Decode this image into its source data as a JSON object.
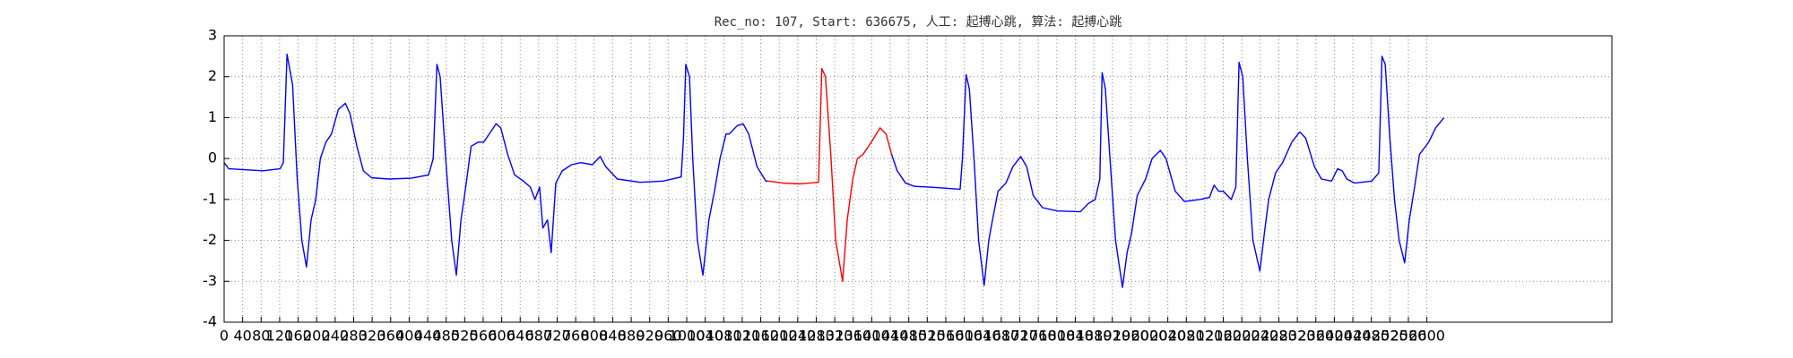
{
  "chart_data": {
    "type": "line",
    "title": "Rec_no: 107, Start: 636675, 人工: 起搏心跳, 算法: 起搏心跳",
    "x": [
      0,
      10,
      84,
      121,
      128,
      136,
      148,
      158,
      168,
      178,
      188,
      198,
      208,
      220,
      232,
      247,
      262,
      272,
      287,
      301,
      319,
      356,
      405,
      442,
      452,
      460,
      467,
      479,
      492,
      502,
      512,
      521,
      534,
      549,
      561,
      573,
      588,
      598,
      613,
      628,
      647,
      662,
      672,
      682,
      689,
      699,
      707,
      717,
      731,
      751,
      771,
      796,
      813,
      825,
      850,
      899,
      949,
      988,
      993,
      998,
      1006,
      1013,
      1023,
      1035,
      1048,
      1060,
      1072,
      1085,
      1092,
      1109,
      1122,
      1134,
      1152,
      1171,
      1176,
      1208,
      1245,
      1285,
      1292,
      1300,
      1312,
      1322,
      1337,
      1347,
      1359,
      1369,
      1381,
      1399,
      1418,
      1431,
      1443,
      1455,
      1473,
      1492,
      1530,
      1591,
      1596,
      1604,
      1611,
      1621,
      1631,
      1643,
      1653,
      1661,
      1673,
      1690,
      1705,
      1722,
      1735,
      1749,
      1769,
      1801,
      1851,
      1868,
      1883,
      1893,
      1898,
      1905,
      1915,
      1927,
      1942,
      1952,
      1962,
      1974,
      1992,
      2006,
      2024,
      2036,
      2056,
      2076,
      2110,
      2130,
      2140,
      2150,
      2160,
      2177,
      2187,
      2194,
      2202,
      2212,
      2224,
      2239,
      2249,
      2258,
      2273,
      2288,
      2308,
      2325,
      2338,
      2357,
      2372,
      2394,
      2407,
      2417,
      2427,
      2444,
      2481,
      2496,
      2503,
      2510,
      2520,
      2530,
      2540,
      2552,
      2562,
      2572,
      2584,
      2604,
      2619,
      2637
    ],
    "series": [
      {
        "color": "#0000ff",
        "values": [
          -0.1,
          -0.25,
          -0.3,
          -0.25,
          -0.1,
          2.55,
          1.8,
          -0.5,
          -2,
          -2.65,
          -1.5,
          -1,
          0,
          0.4,
          0.6,
          1.2,
          1.35,
          1.1,
          0.3,
          -0.3,
          -0.47,
          -0.5,
          -0.48,
          -0.4,
          0,
          2.3,
          2,
          0,
          -2,
          -2.85,
          -1.5,
          -0.8,
          0.3,
          0.4,
          0.4,
          0.6,
          0.85,
          0.75,
          0.1,
          -0.4,
          -0.55,
          -0.7,
          -1,
          -0.7,
          -1.7,
          -1.5,
          -2.3,
          -0.6,
          -0.3,
          -0.15,
          -0.1,
          -0.15,
          0.05,
          -0.2,
          -0.5,
          -0.58,
          -0.55,
          -0.45,
          0.5,
          2.3,
          2,
          0,
          -2,
          -2.85,
          -1.5,
          -0.8,
          0,
          0.6,
          0.6,
          0.8,
          0.85,
          0.6,
          -0.2,
          -0.55,
          -0.55,
          null,
          null,
          null,
          null,
          null,
          null,
          null,
          null,
          null,
          null,
          null,
          null,
          null,
          null,
          null,
          0.1,
          -0.3,
          -0.6,
          -0.68,
          -0.7,
          -0.75,
          0,
          2.05,
          1.7,
          0,
          -2,
          -3.1,
          -2,
          -1.5,
          -0.8,
          -0.6,
          -0.2,
          0.05,
          -0.2,
          -0.9,
          -1.2,
          -1.28,
          -1.3,
          -1.1,
          -1,
          -0.5,
          2.1,
          1.7,
          0,
          -2,
          -3.15,
          -2.3,
          -1.8,
          -0.9,
          -0.5,
          0,
          0.2,
          0,
          -0.8,
          -1.05,
          -1,
          -0.95,
          -0.65,
          -0.8,
          -0.8,
          -1,
          -0.7,
          2.35,
          2,
          0,
          -2,
          -2.75,
          -1.8,
          -1,
          -0.35,
          -0.1,
          0.4,
          0.65,
          0.5,
          -0.2,
          -0.5,
          -0.55,
          -0.25,
          -0.3,
          -0.5,
          -0.6,
          -0.55,
          -0.35,
          2.5,
          2.3,
          0.5,
          -1,
          -2,
          -2.55,
          -1.5,
          -0.8,
          0.1,
          0.4,
          0.75,
          1.0
        ]
      },
      {
        "color": "#ff0000",
        "values": [
          null,
          null,
          null,
          null,
          null,
          null,
          null,
          null,
          null,
          null,
          null,
          null,
          null,
          null,
          null,
          null,
          null,
          null,
          null,
          null,
          null,
          null,
          null,
          null,
          null,
          null,
          null,
          null,
          null,
          null,
          null,
          null,
          null,
          null,
          null,
          null,
          null,
          null,
          null,
          null,
          null,
          null,
          null,
          null,
          null,
          null,
          null,
          null,
          null,
          null,
          null,
          null,
          null,
          null,
          null,
          null,
          null,
          null,
          null,
          null,
          null,
          null,
          null,
          null,
          null,
          null,
          null,
          null,
          null,
          null,
          null,
          null,
          null,
          null,
          -0.55,
          -0.6,
          -0.62,
          -0.58,
          2.2,
          2,
          0,
          -2,
          -3,
          -1.5,
          -0.5,
          0,
          0.1,
          0.4,
          0.75,
          0.6,
          0.1,
          null,
          null,
          null,
          null,
          null,
          null,
          null,
          null,
          null,
          null,
          null,
          null,
          null,
          null,
          null,
          null,
          null,
          null,
          null,
          null,
          null,
          null,
          null,
          null,
          null,
          null,
          null,
          null,
          null,
          null,
          null,
          null,
          null,
          null,
          null,
          null,
          null,
          null,
          null,
          null,
          null,
          null,
          null,
          null,
          null,
          null,
          null,
          null,
          null,
          null,
          null,
          null,
          null,
          null,
          null,
          null,
          null,
          null,
          null,
          null,
          null,
          null,
          null,
          null,
          null,
          null,
          null,
          null,
          null,
          null,
          null,
          null,
          null,
          null,
          null,
          null,
          null,
          null,
          null
        ]
      }
    ],
    "xlim": [
      0,
      3000
    ],
    "ylim": [
      -4,
      3
    ],
    "xticks": [
      0,
      40,
      80,
      120,
      160,
      200,
      240,
      280,
      320,
      360,
      400,
      440,
      480,
      520,
      560,
      600,
      640,
      680,
      720,
      760,
      800,
      840,
      880,
      920,
      960,
      1000,
      1040,
      1080,
      1120,
      1160,
      1200,
      1240,
      1280,
      1320,
      1360,
      1400,
      1440,
      1480,
      1520,
      1560,
      1600,
      1640,
      1680,
      1720,
      1760,
      1800,
      1840,
      1880,
      1920,
      1960,
      2000,
      2040,
      2080,
      2120,
      2160,
      2200,
      2240,
      2280,
      2320,
      2360,
      2400,
      2440,
      2480,
      2520,
      2560,
      2600
    ],
    "yticks": [
      -4,
      -3,
      -2,
      -1,
      0,
      1,
      2,
      3
    ],
    "grid": true
  }
}
